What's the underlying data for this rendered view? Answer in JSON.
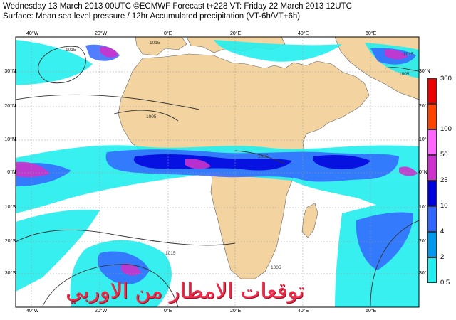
{
  "header": {
    "line1": "Wednesday 13 March 2013 00UTC ©ECMWF Forecast t+228 VT: Friday 22 March 2013 12UTC",
    "line2": "Surface: Mean sea level pressure / 12hr Accumulated precipitation (VT-6h/VT+6h)"
  },
  "map": {
    "lon_labels": [
      "40°W",
      "20°W",
      "0°E",
      "20°E",
      "40°E",
      "60°E"
    ],
    "lat_labels": [
      "30°N",
      "20°N",
      "10°N",
      "0°N",
      "10°S",
      "20°S",
      "30°S"
    ],
    "isobar_labels": [
      "1015",
      "1015",
      "1005",
      "1005",
      "1005",
      "1015",
      "1015",
      "1005"
    ],
    "land_color": "#f3d4a0",
    "ocean_color": "#ffffff"
  },
  "legend": {
    "levels": [
      {
        "label": "300",
        "color": "#ee0000"
      },
      {
        "label": "100",
        "color": "#ff4400"
      },
      {
        "label": "50",
        "color": "#ff66ff"
      },
      {
        "label": "25",
        "color": "#cc33cc"
      },
      {
        "label": "10",
        "color": "#0000dd"
      },
      {
        "label": "4",
        "color": "#3366ff"
      },
      {
        "label": "2",
        "color": "#0099ee"
      },
      {
        "label": "0.5",
        "color": "#22eeee"
      }
    ]
  },
  "watermark": "توقعات الامطار من الاوربي"
}
